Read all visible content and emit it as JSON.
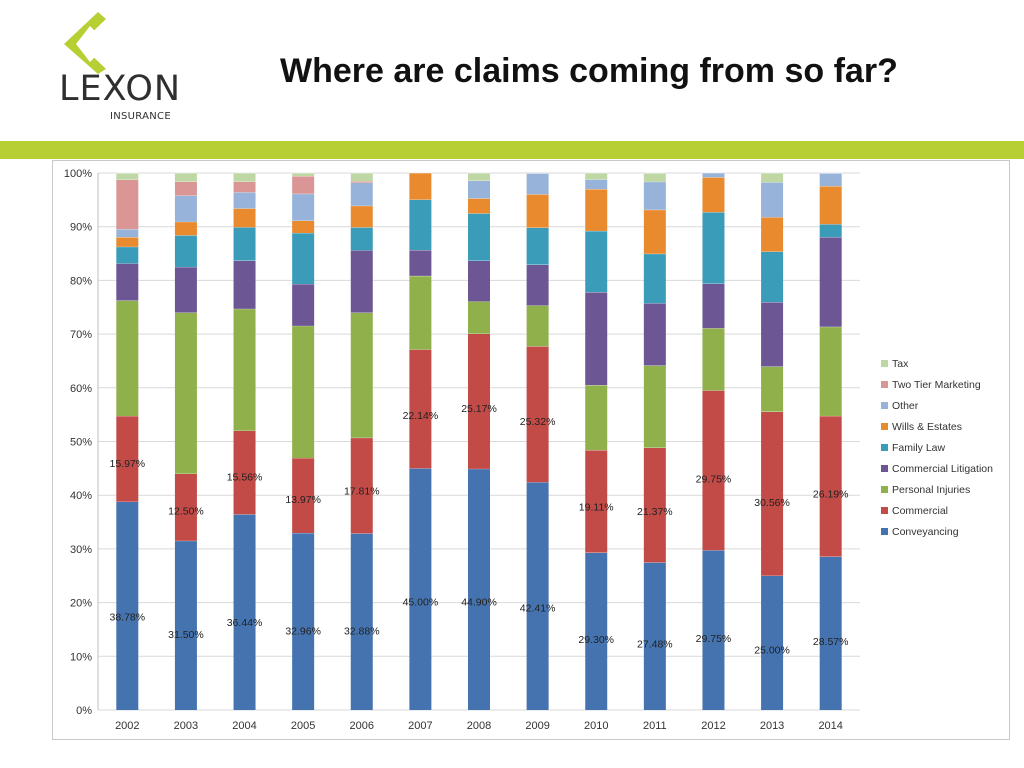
{
  "header": {
    "title": "Where are claims coming from so far?",
    "logo_word": "LEXON",
    "logo_sub": "INSURANCE",
    "brand_color": "#b7cf33"
  },
  "chart_data": {
    "type": "bar",
    "stacked": true,
    "title": "",
    "xlabel": "",
    "ylabel": "",
    "ylim": [
      0,
      100
    ],
    "yticks": [
      "0%",
      "10%",
      "20%",
      "30%",
      "40%",
      "50%",
      "60%",
      "70%",
      "80%",
      "90%",
      "100%"
    ],
    "grid": true,
    "legend_position": "right",
    "categories": [
      "2002",
      "2003",
      "2004",
      "2005",
      "2006",
      "2007",
      "2008",
      "2009",
      "2010",
      "2011",
      "2012",
      "2013",
      "2014"
    ],
    "series": [
      {
        "name": "Conveyancing",
        "color": "#4573b0",
        "label_values": true,
        "values": [
          38.78,
          31.5,
          36.44,
          32.96,
          32.88,
          45.0,
          44.9,
          42.41,
          29.3,
          27.48,
          29.75,
          25.0,
          28.57
        ]
      },
      {
        "name": "Commercial",
        "color": "#c24a47",
        "label_values": true,
        "values": [
          15.97,
          12.5,
          15.56,
          13.97,
          17.81,
          22.14,
          25.17,
          25.32,
          19.11,
          21.37,
          29.75,
          30.56,
          26.19
        ]
      },
      {
        "name": "Personal Injuries",
        "color": "#8fb04a",
        "values": [
          21.5,
          30.0,
          22.7,
          24.6,
          23.3,
          13.7,
          6.0,
          7.6,
          12.1,
          15.3,
          11.6,
          8.4,
          16.6
        ]
      },
      {
        "name": "Commercial Litigation",
        "color": "#6c5794",
        "values": [
          6.9,
          8.5,
          9.0,
          7.8,
          11.6,
          4.8,
          7.6,
          7.6,
          17.3,
          11.6,
          8.3,
          12.0,
          16.7
        ]
      },
      {
        "name": "Family Law",
        "color": "#3a9cb9",
        "values": [
          3.1,
          5.9,
          6.2,
          9.5,
          4.3,
          9.4,
          8.8,
          6.9,
          11.4,
          9.2,
          13.3,
          9.4,
          2.4
        ]
      },
      {
        "name": "Wills & Estates",
        "color": "#e98a2e",
        "values": [
          1.8,
          2.5,
          3.5,
          2.3,
          4.0,
          5.0,
          2.8,
          6.2,
          7.8,
          8.2,
          6.5,
          6.4,
          7.1
        ]
      },
      {
        "name": "Other",
        "color": "#97b3d9",
        "values": [
          1.5,
          4.9,
          3.0,
          5.0,
          4.3,
          0,
          3.3,
          3.9,
          1.8,
          5.2,
          1.0,
          6.5,
          2.4
        ]
      },
      {
        "name": "Two Tier Marketing",
        "color": "#d99694",
        "values": [
          9.2,
          2.6,
          2.0,
          3.3,
          0.3,
          0,
          0,
          0,
          0,
          0,
          0,
          0,
          0
        ]
      },
      {
        "name": "Tax",
        "color": "#bfd7a5",
        "values": [
          1.24,
          1.6,
          1.6,
          0.57,
          1.81,
          0,
          1.43,
          0,
          1.19,
          1.64,
          0,
          1.9,
          0
        ]
      }
    ]
  }
}
